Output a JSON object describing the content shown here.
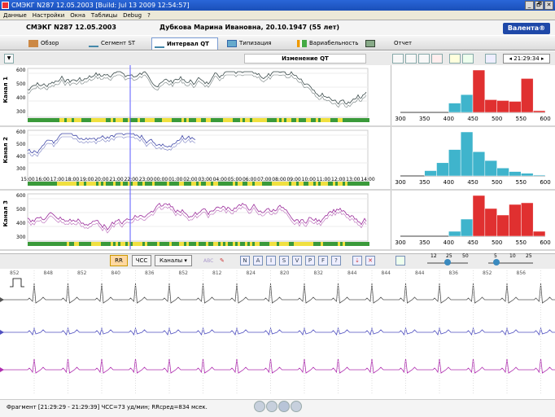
{
  "window": {
    "title": "СМЭКГ  N287  12.05.2003 [Build: Jul 13 2009 12:54:57]",
    "controls": [
      "_",
      "🗗",
      "✕"
    ]
  },
  "menu": [
    "Данные",
    "Настройки",
    "Окна",
    "Таблицы",
    "Debug",
    "?"
  ],
  "patient": {
    "record": "СМЭКГ  N287  12.05.2003",
    "name": "Дубкова Марина Ивановна, 20.10.1947 (55 лет)",
    "logo": "Валента®"
  },
  "tabs": [
    {
      "label": "Обзор"
    },
    {
      "label": "Сегмент ST"
    },
    {
      "label": "Интервал QT",
      "active": true
    },
    {
      "label": "Типизация"
    },
    {
      "label": "Вариабельность"
    },
    {
      "label": "Отчет"
    }
  ],
  "view": {
    "title": "Изменение QT",
    "time": "21:29:34"
  },
  "trend": {
    "ticks": [
      "15:00",
      "16:00",
      "17:00",
      "18:00",
      "19:00",
      "20:00",
      "21:00",
      "22:00",
      "23:00",
      "00:00",
      "01:00",
      "02:00",
      "03:00",
      "04:00",
      "05:00",
      "06:00",
      "07:00",
      "08:00",
      "09:00",
      "10:00",
      "11:00",
      "12:00",
      "13:00",
      "14:00"
    ],
    "channels": [
      {
        "label": "Канал 1",
        "yticks": [
          "600",
          "500",
          "400",
          "300"
        ],
        "color": "#3a4a4a"
      },
      {
        "label": "Канал 2",
        "yticks": [
          "600",
          "500",
          "400",
          "300"
        ],
        "color": "#4048a8"
      },
      {
        "label": "Канал 3",
        "yticks": [
          "600",
          "500",
          "400",
          "300"
        ],
        "color": "#9a2a9a"
      }
    ]
  },
  "chart_data": [
    {
      "type": "bar",
      "title": "",
      "x": [
        300,
        350,
        400,
        425,
        450,
        475,
        500,
        525,
        550,
        575,
        600
      ],
      "xticks": [
        "300",
        "350",
        "400",
        "450",
        "500",
        "550",
        "600"
      ],
      "values": [
        0,
        0,
        22,
        42,
        100,
        30,
        28,
        26,
        80,
        4,
        0
      ],
      "colors": [
        "#3fb4cc",
        "#3fb4cc",
        "#3fb4cc",
        "#3fb4cc",
        "#e03030",
        "#e03030",
        "#e03030",
        "#e03030",
        "#e03030",
        "#e03030",
        "#e03030"
      ]
    },
    {
      "type": "bar",
      "title": "",
      "x": [
        300,
        325,
        350,
        375,
        400,
        425,
        450,
        475,
        500,
        525,
        550,
        575,
        600
      ],
      "xticks": [
        "300",
        "350",
        "400",
        "450",
        "500",
        "550",
        "600"
      ],
      "values": [
        0,
        0,
        12,
        30,
        60,
        100,
        55,
        35,
        18,
        10,
        6,
        2,
        0
      ],
      "colors": [
        "#3fb4cc",
        "#3fb4cc",
        "#3fb4cc",
        "#3fb4cc",
        "#3fb4cc",
        "#3fb4cc",
        "#3fb4cc",
        "#3fb4cc",
        "#3fb4cc",
        "#3fb4cc",
        "#3fb4cc",
        "#3fb4cc",
        "#3fb4cc"
      ]
    },
    {
      "type": "bar",
      "title": "",
      "x": [
        300,
        350,
        400,
        425,
        450,
        475,
        500,
        525,
        550,
        575,
        600
      ],
      "xticks": [
        "300",
        "350",
        "400",
        "450",
        "500",
        "550",
        "600"
      ],
      "values": [
        0,
        0,
        12,
        42,
        100,
        68,
        52,
        78,
        82,
        12,
        0
      ],
      "colors": [
        "#3fb4cc",
        "#3fb4cc",
        "#3fb4cc",
        "#3fb4cc",
        "#e03030",
        "#e03030",
        "#e03030",
        "#e03030",
        "#e03030",
        "#e03030",
        "#e03030"
      ]
    }
  ],
  "controls": {
    "rr": "RR",
    "hr": "ЧСС",
    "channels": "Каналы",
    "lead_buttons": [
      "N",
      "A",
      "I",
      "S",
      "V",
      "P",
      "F",
      "?"
    ],
    "slider1": [
      "12",
      "25",
      "50"
    ],
    "slider2": [
      "5",
      "10",
      "25"
    ]
  },
  "rr_values": [
    "852",
    "848",
    "852",
    "840",
    "836",
    "852",
    "812",
    "824",
    "820",
    "832",
    "844",
    "844",
    "844",
    "836",
    "852",
    "856"
  ],
  "status": "Фрагмент [21:29:29 - 21:29:39]  ЧСС=73 уд/мин;  RRсред=834 мсек."
}
